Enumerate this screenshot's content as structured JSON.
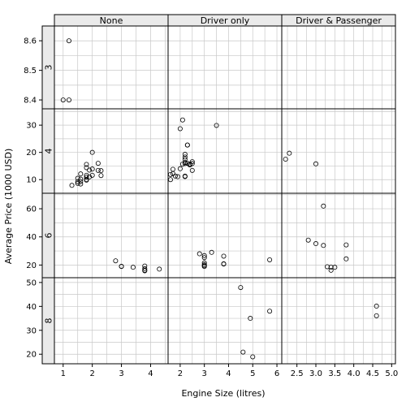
{
  "chart_data": {
    "type": "scatter",
    "xlabel": "Engine Size (litres)",
    "ylabel": "Average Price (1000 USD)",
    "columns": [
      "None",
      "Driver only",
      "Driver & Passenger"
    ],
    "rows": [
      "3",
      "4",
      "6",
      "8"
    ],
    "x_ticks": [
      [
        "1",
        "2",
        "3",
        "4"
      ],
      [
        "2",
        "3",
        "4",
        "5",
        "6"
      ],
      [
        "2.5",
        "3.0",
        "3.5",
        "4.0",
        "4.5",
        "5.0"
      ]
    ],
    "x_tick_values": [
      [
        1,
        2,
        3,
        4
      ],
      [
        2,
        3,
        4,
        5,
        6
      ],
      [
        2.5,
        3.0,
        3.5,
        4.0,
        4.5,
        5.0
      ]
    ],
    "xlim": [
      [
        0.7,
        4.6
      ],
      [
        1.5,
        6.2
      ],
      [
        2.1,
        5.1
      ]
    ],
    "y_ticks": [
      [
        "8.4",
        "8.5",
        "8.6"
      ],
      [
        "10",
        "20",
        "30"
      ],
      [
        "20",
        "40",
        "60"
      ],
      [
        "20",
        "30",
        "40",
        "50"
      ]
    ],
    "y_tick_values": [
      [
        8.4,
        8.5,
        8.6
      ],
      [
        10,
        20,
        30
      ],
      [
        20,
        40,
        60
      ],
      [
        20,
        30,
        40,
        50
      ]
    ],
    "ylim": [
      [
        8.37,
        8.65
      ],
      [
        5,
        36
      ],
      [
        11,
        71
      ],
      [
        16,
        52
      ]
    ],
    "grid": true,
    "panels": [
      {
        "row": 0,
        "col": 0,
        "x": [
          1.2,
          1.0,
          1.2
        ],
        "y": [
          8.6,
          8.4,
          8.4
        ]
      },
      {
        "row": 0,
        "col": 1,
        "x": [],
        "y": []
      },
      {
        "row": 0,
        "col": 2,
        "x": [],
        "y": []
      },
      {
        "row": 1,
        "col": 0,
        "x": [
          1.6,
          1.6,
          1.6,
          1.6,
          1.5,
          1.5,
          1.5,
          1.3,
          1.8,
          1.8,
          1.8,
          1.8,
          1.8,
          1.8,
          1.9,
          1.9,
          2.0,
          2.0,
          2.0,
          2.2,
          2.2,
          2.3,
          2.3
        ],
        "y": [
          12.1,
          10.2,
          9.3,
          8.4,
          9.2,
          8.6,
          10.5,
          7.9,
          15.6,
          14.4,
          11.6,
          10.9,
          10.1,
          9.8,
          13.5,
          11.0,
          20.0,
          11.6,
          13.9,
          16.0,
          13.4,
          13.3,
          11.5
        ]
      },
      {
        "row": 1,
        "col": 1,
        "x": [
          1.6,
          1.6,
          1.7,
          1.7,
          1.8,
          1.9,
          2.0,
          2.0,
          2.1,
          2.1,
          2.2,
          2.2,
          2.2,
          2.2,
          2.2,
          2.2,
          2.2,
          2.3,
          2.3,
          2.3,
          2.4,
          2.4,
          2.5,
          2.5,
          2.5,
          3.5
        ],
        "y": [
          10.0,
          11.9,
          12.2,
          13.8,
          11.3,
          11.1,
          14.0,
          28.7,
          31.9,
          15.7,
          19.3,
          18.3,
          17.5,
          16.3,
          15.9,
          11.3,
          11.1,
          22.7,
          22.7,
          16.0,
          15.4,
          15.7,
          16.6,
          15.9,
          13.4,
          29.9
        ]
      },
      {
        "row": 1,
        "col": 2,
        "x": [
          2.2,
          2.3,
          3.0
        ],
        "y": [
          17.5,
          19.7,
          15.8
        ]
      },
      {
        "row": 2,
        "col": 0,
        "x": [
          2.8,
          3.0,
          3.0,
          3.4,
          3.8,
          3.8,
          3.8,
          3.8,
          4.3
        ],
        "y": [
          23.0,
          19.1,
          19.0,
          18.4,
          19.3,
          17.4,
          16.3,
          15.9,
          17.1
        ]
      },
      {
        "row": 2,
        "col": 1,
        "x": [
          2.8,
          3.0,
          3.0,
          3.0,
          3.0,
          3.0,
          3.0,
          3.3,
          3.8,
          3.8,
          3.8,
          5.7
        ],
        "y": [
          28.0,
          26.7,
          25.3,
          21.5,
          20.2,
          19.5,
          19.0,
          29.0,
          26.3,
          20.9,
          20.7,
          23.7
        ]
      },
      {
        "row": 2,
        "col": 2,
        "x": [
          2.8,
          3.0,
          3.2,
          3.2,
          3.3,
          3.4,
          3.4,
          3.5,
          3.8,
          3.8
        ],
        "y": [
          37.7,
          35.2,
          61.9,
          33.9,
          18.8,
          18.5,
          16.3,
          18.4,
          34.3,
          24.4
        ]
      },
      {
        "row": 3,
        "col": 0,
        "x": [],
        "y": []
      },
      {
        "row": 3,
        "col": 1,
        "x": [
          4.5,
          4.6,
          4.9,
          5.0,
          5.7
        ],
        "y": [
          47.9,
          20.9,
          35.0,
          18.9,
          38.0
        ]
      },
      {
        "row": 3,
        "col": 2,
        "x": [
          4.6,
          4.6
        ],
        "y": [
          40.1,
          36.1
        ]
      }
    ]
  }
}
